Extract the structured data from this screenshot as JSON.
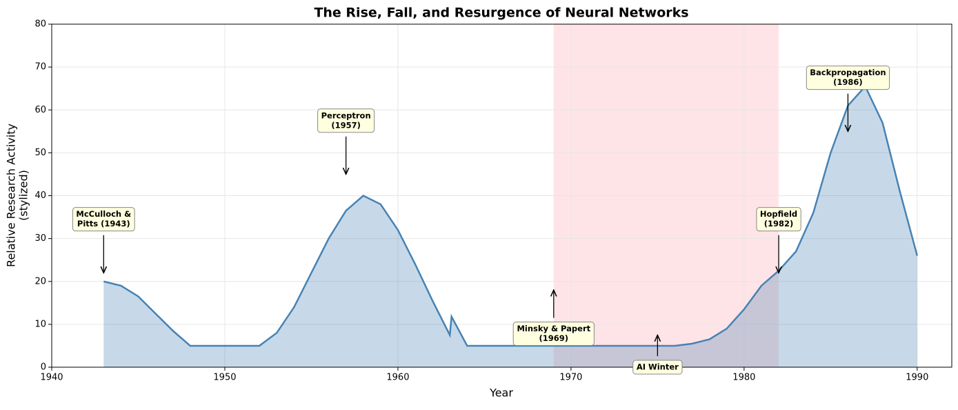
{
  "chart_data": {
    "type": "area",
    "title": "The Rise, Fall, and Resurgence of Neural Networks",
    "xlabel": "Year",
    "ylabel": [
      "Relative Research Activity",
      "(stylized)"
    ],
    "x": [
      1943,
      1944,
      1945,
      1946,
      1947,
      1948,
      1949,
      1950,
      1951,
      1952,
      1953,
      1954,
      1955,
      1956,
      1957,
      1958,
      1959,
      1960,
      1961,
      1962,
      1963,
      1963.1,
      1964,
      1965,
      1966,
      1967,
      1968,
      1969,
      1970,
      1971,
      1972,
      1973,
      1974,
      1975,
      1976,
      1977,
      1978,
      1979,
      1980,
      1981,
      1982,
      1983,
      1984,
      1985,
      1986,
      1987,
      1988,
      1989,
      1990
    ],
    "series": [
      {
        "color": "#4682b4",
        "values": [
          20,
          19,
          16.5,
          12.5,
          8.5,
          5,
          5,
          5,
          5,
          5,
          8,
          14,
          22,
          30,
          36.5,
          40,
          38,
          32,
          24,
          15.5,
          7.5,
          11.8,
          5,
          5,
          5,
          5,
          5,
          5,
          5,
          5,
          5,
          5,
          5,
          5,
          5,
          5.5,
          6.5,
          9,
          13.5,
          19,
          22.5,
          27,
          36,
          50,
          61,
          65.5,
          57,
          41,
          26
        ]
      }
    ],
    "shaded_region": {
      "x": [
        1969,
        1982
      ],
      "color": "#ff4d5e"
    },
    "annotations": [
      {
        "lines": [
          "McCulloch &",
          "Pitts (1943)"
        ],
        "x": 1943,
        "y": 22,
        "text_x": 1943,
        "text_y": 34.5
      },
      {
        "lines": [
          "Perceptron",
          "(1957)"
        ],
        "x": 1957,
        "y": 45,
        "text_x": 1957,
        "text_y": 57.5
      },
      {
        "lines": [
          "Minsky & Papert",
          "(1969)"
        ],
        "x": 1969,
        "y": 18,
        "text_x": 1969,
        "text_y": 7.8
      },
      {
        "lines": [
          "AI Winter"
        ],
        "x": 1975,
        "y": 7.5,
        "text_x": 1975,
        "text_y": 0
      },
      {
        "lines": [
          "Hopfield",
          "(1982)"
        ],
        "x": 1982,
        "y": 22,
        "text_x": 1982,
        "text_y": 34.5
      },
      {
        "lines": [
          "Backpropagation",
          "(1986)"
        ],
        "x": 1986,
        "y": 55,
        "text_x": 1986,
        "text_y": 67.5
      }
    ],
    "xlim": [
      1940,
      1992
    ],
    "ylim": [
      0,
      80
    ],
    "xticks": [
      1940,
      1950,
      1960,
      1970,
      1980,
      1990
    ],
    "yticks": [
      0,
      10,
      20,
      30,
      40,
      50,
      60,
      70,
      80
    ],
    "grid": true
  }
}
